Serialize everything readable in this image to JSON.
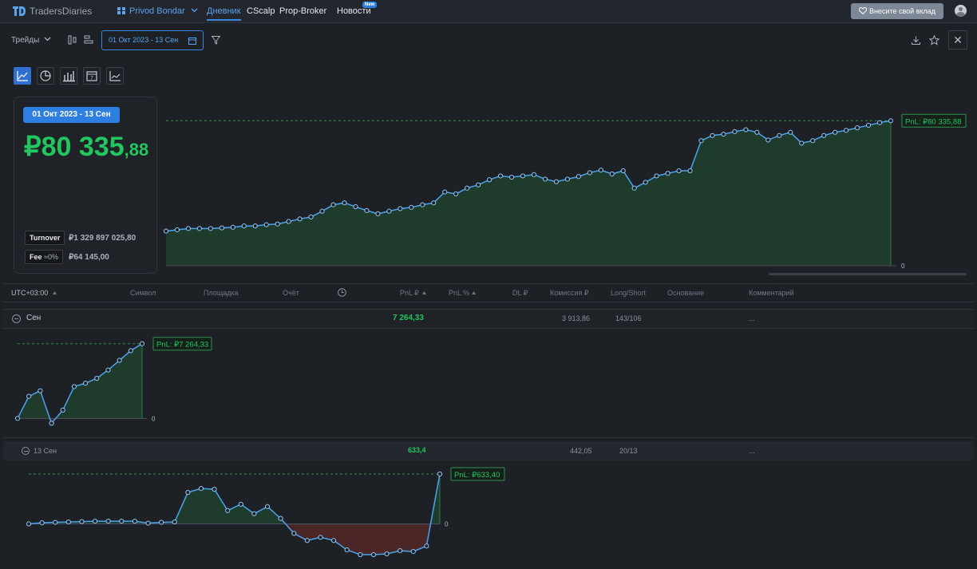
{
  "header": {
    "logo_text": "TradersDiaries",
    "account": "Privod Bondar",
    "nav": [
      {
        "label": "Дневник",
        "active": true
      },
      {
        "label": "CScalp"
      },
      {
        "label": "Prop-Broker"
      },
      {
        "label": "Новости"
      }
    ],
    "news_badge": "New",
    "donate_label": "Внесите свой вклад"
  },
  "toolbar": {
    "view_select": "Трейды",
    "date_range": "01 Окт 2023 - 13 Сен"
  },
  "summary": {
    "range": "01 Окт 2023 - 13 Сен",
    "pnl_int": "₽80 335",
    "pnl_dec": ",88",
    "turnover_label": "Turnover",
    "turnover_value": "₽1 329 897 025,80",
    "fee_label": "Fee",
    "fee_pct": "≈0%",
    "fee_value": "₽64 145,00"
  },
  "main_chart": {
    "end_label": "PnL: ₽80 335,88",
    "zero_label": "0"
  },
  "table": {
    "columns": [
      "UTC+03:00",
      "Символ",
      "Площадка",
      "Очёт",
      "PnL ₽",
      "PnL %",
      "DL ₽",
      "Комиссия ₽",
      "Long/Short",
      "Основание",
      "Комментарий"
    ],
    "month_row": {
      "label": "Сен",
      "pnl": "7 264,33",
      "commission": "3 913,86",
      "long_short": "143/106",
      "comment": "..."
    },
    "day_row": {
      "label": "13 Сен",
      "pnl": "633,4",
      "commission": "442,05",
      "long_short": "20/13",
      "comment": "..."
    }
  },
  "month_chart": {
    "end_label": "PnL: ₽7 264,33",
    "zero_label": "0"
  },
  "day_chart": {
    "end_label": "PnL: ₽633,40",
    "zero_label": "0"
  },
  "colors": {
    "accent": "#3b86e0",
    "positive": "#22c55e",
    "line": "#4aa3f0",
    "area_pos": "#1f3b2c",
    "area_neg": "#4a2626"
  },
  "chart_data": [
    {
      "type": "area",
      "series": [
        {
          "values": [
            5.4,
            5.6,
            5.8,
            5.8,
            5.8,
            5.9,
            6.0,
            6.2,
            6.2,
            6.4,
            6.5,
            6.9,
            7.3,
            7.6,
            8.5,
            9.5,
            9.8,
            9.2,
            8.6,
            8.1,
            8.5,
            8.9,
            9.1,
            9.5,
            9.8,
            11.5,
            11.2,
            12.1,
            12.6,
            13.4,
            14.0,
            13.8,
            14.0,
            14.2,
            13.5,
            13.1,
            13.5,
            13.9,
            14.5,
            14.9,
            14.3,
            14.8,
            12.1,
            13.0,
            14.0,
            14.4,
            14.8,
            14.8,
            19.5,
            20.3,
            20.5,
            20.9,
            21.2,
            20.8,
            19.6,
            20.3,
            20.8,
            19.1,
            19.5,
            20.3,
            20.8,
            21.1,
            21.5,
            21.9,
            22.3,
            22.6
          ]
        }
      ],
      "ylim": [
        0,
        25
      ]
    },
    {
      "type": "area",
      "series": [
        {
          "values": [
            0,
            3.2,
            4.0,
            -0.7,
            1.2,
            4.6,
            5.1,
            5.8,
            7.0,
            8.4,
            9.8,
            10.8
          ]
        }
      ],
      "ylim": [
        -1,
        11
      ]
    },
    {
      "type": "area",
      "series": [
        {
          "values": [
            0,
            15,
            20,
            25,
            30,
            35,
            35,
            35,
            35,
            10,
            20,
            25,
            400,
            450,
            440,
            170,
            250,
            130,
            220,
            70,
            -120,
            -210,
            -170,
            -210,
            -330,
            -390,
            -390,
            -380,
            -340,
            -350,
            -280,
            633.4
          ]
        }
      ],
      "ylim": [
        -420,
        633.4
      ]
    }
  ]
}
